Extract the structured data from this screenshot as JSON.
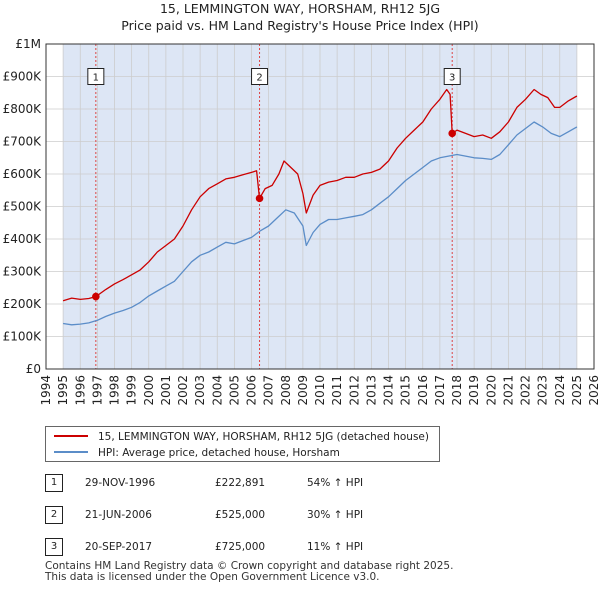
{
  "chart_data": {
    "type": "line",
    "title": "15, LEMMINGTON WAY, HORSHAM, RH12 5JG",
    "subtitle": "Price paid vs. HM Land Registry's House Price Index (HPI)",
    "xlim": [
      1994,
      2026
    ],
    "ylim": [
      0,
      1000000
    ],
    "x_ticks": [
      1994,
      1995,
      1996,
      1997,
      1998,
      1999,
      2000,
      2001,
      2002,
      2003,
      2004,
      2005,
      2006,
      2007,
      2008,
      2009,
      2010,
      2011,
      2012,
      2013,
      2014,
      2015,
      2016,
      2017,
      2018,
      2019,
      2020,
      2021,
      2022,
      2023,
      2024,
      2025,
      2026
    ],
    "y_ticks": [
      0,
      100000,
      200000,
      300000,
      400000,
      500000,
      600000,
      700000,
      800000,
      900000,
      1000000
    ],
    "y_tick_labels": [
      "£0",
      "£100K",
      "£200K",
      "£300K",
      "£400K",
      "£500K",
      "£600K",
      "£700K",
      "£800K",
      "£900K",
      "£1M"
    ],
    "data_start": 1995.0,
    "data_end": 2025.0,
    "colors": {
      "property": "#cc0000",
      "hpi": "#5b8dc8",
      "shade": "#dde6f5",
      "marker_line": "#dd4444",
      "grid": "#cccccc"
    },
    "series": [
      {
        "name": "15, LEMMINGTON WAY, HORSHAM, RH12 5JG (detached house)",
        "color": "#cc0000",
        "points": [
          [
            1995.0,
            210000
          ],
          [
            1995.5,
            218000
          ],
          [
            1996.0,
            214000
          ],
          [
            1996.5,
            217000
          ],
          [
            1996.91,
            222891
          ],
          [
            1997.5,
            245000
          ],
          [
            1998.0,
            262000
          ],
          [
            1998.5,
            275000
          ],
          [
            1999.0,
            290000
          ],
          [
            1999.5,
            305000
          ],
          [
            2000.0,
            330000
          ],
          [
            2000.5,
            360000
          ],
          [
            2001.0,
            380000
          ],
          [
            2001.5,
            400000
          ],
          [
            2002.0,
            440000
          ],
          [
            2002.5,
            490000
          ],
          [
            2003.0,
            530000
          ],
          [
            2003.5,
            555000
          ],
          [
            2004.0,
            570000
          ],
          [
            2004.5,
            585000
          ],
          [
            2005.0,
            590000
          ],
          [
            2005.5,
            598000
          ],
          [
            2006.0,
            605000
          ],
          [
            2006.3,
            610000
          ],
          [
            2006.47,
            525000
          ],
          [
            2006.8,
            555000
          ],
          [
            2007.2,
            565000
          ],
          [
            2007.6,
            600000
          ],
          [
            2007.9,
            640000
          ],
          [
            2008.3,
            620000
          ],
          [
            2008.7,
            600000
          ],
          [
            2009.0,
            540000
          ],
          [
            2009.2,
            480000
          ],
          [
            2009.6,
            535000
          ],
          [
            2010.0,
            565000
          ],
          [
            2010.5,
            575000
          ],
          [
            2011.0,
            580000
          ],
          [
            2011.5,
            590000
          ],
          [
            2012.0,
            590000
          ],
          [
            2012.5,
            600000
          ],
          [
            2013.0,
            605000
          ],
          [
            2013.5,
            615000
          ],
          [
            2014.0,
            640000
          ],
          [
            2014.5,
            680000
          ],
          [
            2015.0,
            710000
          ],
          [
            2015.5,
            735000
          ],
          [
            2016.0,
            760000
          ],
          [
            2016.5,
            800000
          ],
          [
            2017.0,
            830000
          ],
          [
            2017.4,
            860000
          ],
          [
            2017.6,
            845000
          ],
          [
            2017.72,
            725000
          ],
          [
            2018.0,
            735000
          ],
          [
            2018.5,
            725000
          ],
          [
            2019.0,
            715000
          ],
          [
            2019.5,
            720000
          ],
          [
            2020.0,
            710000
          ],
          [
            2020.5,
            730000
          ],
          [
            2021.0,
            760000
          ],
          [
            2021.5,
            805000
          ],
          [
            2022.0,
            830000
          ],
          [
            2022.5,
            860000
          ],
          [
            2022.9,
            845000
          ],
          [
            2023.3,
            835000
          ],
          [
            2023.7,
            805000
          ],
          [
            2024.0,
            805000
          ],
          [
            2024.5,
            825000
          ],
          [
            2025.0,
            840000
          ]
        ]
      },
      {
        "name": "HPI: Average price, detached house, Horsham",
        "color": "#5b8dc8",
        "points": [
          [
            1995.0,
            140000
          ],
          [
            1995.5,
            136000
          ],
          [
            1996.0,
            138000
          ],
          [
            1996.5,
            142000
          ],
          [
            1997.0,
            150000
          ],
          [
            1997.5,
            162000
          ],
          [
            1998.0,
            172000
          ],
          [
            1998.5,
            180000
          ],
          [
            1999.0,
            190000
          ],
          [
            1999.5,
            205000
          ],
          [
            2000.0,
            225000
          ],
          [
            2000.5,
            240000
          ],
          [
            2001.0,
            255000
          ],
          [
            2001.5,
            270000
          ],
          [
            2002.0,
            300000
          ],
          [
            2002.5,
            330000
          ],
          [
            2003.0,
            350000
          ],
          [
            2003.5,
            360000
          ],
          [
            2004.0,
            375000
          ],
          [
            2004.5,
            390000
          ],
          [
            2005.0,
            385000
          ],
          [
            2005.5,
            395000
          ],
          [
            2006.0,
            405000
          ],
          [
            2006.5,
            425000
          ],
          [
            2007.0,
            440000
          ],
          [
            2007.5,
            465000
          ],
          [
            2008.0,
            490000
          ],
          [
            2008.5,
            480000
          ],
          [
            2009.0,
            440000
          ],
          [
            2009.2,
            380000
          ],
          [
            2009.6,
            420000
          ],
          [
            2010.0,
            445000
          ],
          [
            2010.5,
            460000
          ],
          [
            2011.0,
            460000
          ],
          [
            2011.5,
            465000
          ],
          [
            2012.0,
            470000
          ],
          [
            2012.5,
            475000
          ],
          [
            2013.0,
            490000
          ],
          [
            2013.5,
            510000
          ],
          [
            2014.0,
            530000
          ],
          [
            2014.5,
            555000
          ],
          [
            2015.0,
            580000
          ],
          [
            2015.5,
            600000
          ],
          [
            2016.0,
            620000
          ],
          [
            2016.5,
            640000
          ],
          [
            2017.0,
            650000
          ],
          [
            2017.5,
            655000
          ],
          [
            2018.0,
            660000
          ],
          [
            2018.5,
            655000
          ],
          [
            2019.0,
            650000
          ],
          [
            2019.5,
            648000
          ],
          [
            2020.0,
            645000
          ],
          [
            2020.5,
            660000
          ],
          [
            2021.0,
            690000
          ],
          [
            2021.5,
            720000
          ],
          [
            2022.0,
            740000
          ],
          [
            2022.5,
            760000
          ],
          [
            2023.0,
            745000
          ],
          [
            2023.5,
            725000
          ],
          [
            2024.0,
            715000
          ],
          [
            2024.5,
            730000
          ],
          [
            2025.0,
            745000
          ]
        ]
      }
    ],
    "sales": [
      {
        "num": "1",
        "x": 1996.91,
        "price": 222891,
        "date": "29-NOV-1996",
        "price_label": "£222,891",
        "hpi_label": "54% ↑ HPI"
      },
      {
        "num": "2",
        "x": 2006.47,
        "price": 525000,
        "date": "21-JUN-2006",
        "price_label": "£525,000",
        "hpi_label": "30% ↑ HPI"
      },
      {
        "num": "3",
        "x": 2017.72,
        "price": 725000,
        "date": "20-SEP-2017",
        "price_label": "£725,000",
        "hpi_label": "11% ↑ HPI"
      }
    ],
    "marker_label_value": 900000
  },
  "legend": {
    "property_label": "15, LEMMINGTON WAY, HORSHAM, RH12 5JG (detached house)",
    "hpi_label": "HPI: Average price, detached house, Horsham"
  },
  "footer": {
    "line1": "Contains HM Land Registry data © Crown copyright and database right 2025.",
    "line2": "This data is licensed under the Open Government Licence v3.0."
  }
}
